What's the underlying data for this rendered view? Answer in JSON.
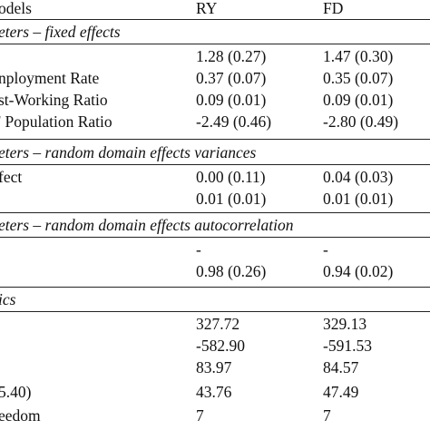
{
  "table": {
    "header": {
      "col0": "odels",
      "col1": "RY",
      "col2": "FD"
    },
    "sections": [
      {
        "title": "eters – fixed effects",
        "rows": [
          {
            "label": "",
            "ry": "1.28 (0.27)",
            "fd": "1.47 (0.30)"
          },
          {
            "label": "nployment Rate",
            "ry": "0.37 (0.07)",
            "fd": "0.35 (0.07)"
          },
          {
            "label": "st-Working Ratio",
            "ry": "0.09 (0.01)",
            "fd": "0.09 (0.01)"
          },
          {
            "label": "' Population Ratio",
            "ry": "-2.49 (0.46)",
            "fd": "-2.80 (0.49)"
          }
        ]
      },
      {
        "title": "eters – random domain effects variances",
        "rows": [
          {
            "label": "fect",
            "ry": "0.00 (0.11)",
            "fd": "0.04 (0.03)"
          },
          {
            "label": "",
            "ry": "0.01 (0.01)",
            "fd": "0.01 (0.01)"
          }
        ]
      },
      {
        "title": "eters – random domain effects autocorrelation",
        "rows": [
          {
            "label": "",
            "ry": "-",
            "fd": "-"
          },
          {
            "label": "",
            "ry": "0.98 (0.26)",
            "fd": "0.94 (0.02)"
          }
        ]
      },
      {
        "title": "ics",
        "rows": [
          {
            "label": "",
            "ry": "327.72",
            "fd": "329.13"
          },
          {
            "label": "",
            "ry": "-582.90",
            "fd": "-591.53"
          },
          {
            "label": "",
            "ry": "83.97",
            "fd": "84.57"
          },
          {
            "label": "5.40)",
            "ry": "43.76",
            "fd": "47.49"
          },
          {
            "label": "eedom",
            "ry": "7",
            "fd": "7"
          }
        ]
      }
    ]
  }
}
